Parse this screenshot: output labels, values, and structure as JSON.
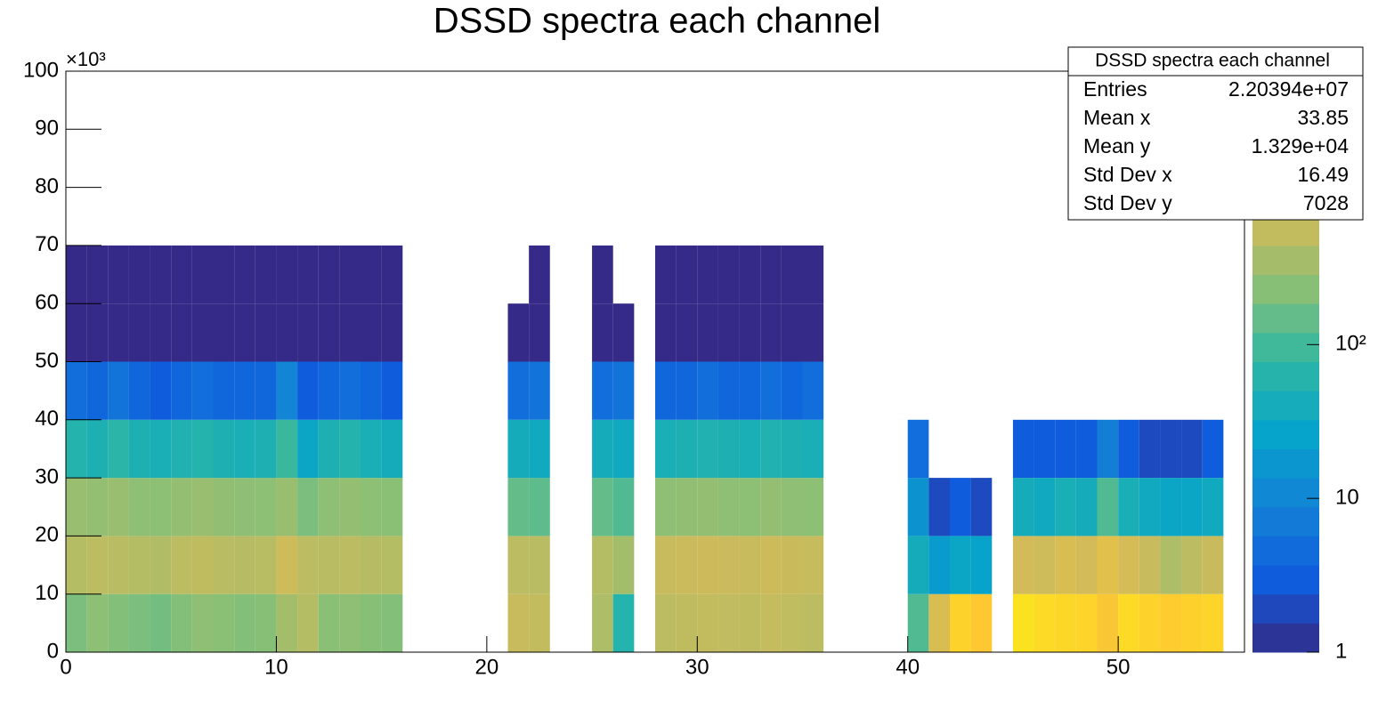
{
  "chart_data": {
    "type": "heatmap",
    "title": "DSSD spectra each channel",
    "y_multiplier": "×10³",
    "xlim": [
      0,
      56
    ],
    "xticks": [
      0,
      10,
      20,
      30,
      40,
      50
    ],
    "ylim": [
      0,
      100
    ],
    "yticks": [
      0,
      10,
      20,
      30,
      40,
      50,
      60,
      70,
      80,
      90,
      100
    ],
    "xbins": [
      0,
      1,
      2,
      3,
      4,
      5,
      6,
      7,
      8,
      9,
      10,
      11,
      12,
      13,
      14,
      15,
      16,
      17,
      18,
      19,
      20,
      21,
      22,
      23,
      24,
      25,
      26,
      27,
      28,
      29,
      30,
      31,
      32,
      33,
      34,
      35,
      36,
      37,
      38,
      39,
      40,
      41,
      42,
      43,
      44,
      45,
      46,
      47,
      48,
      49,
      50,
      51,
      52,
      53,
      54,
      55,
      56
    ],
    "ybins": [
      0,
      10,
      20,
      30,
      40,
      50,
      60,
      70
    ],
    "zlim": [
      1,
      6000
    ],
    "zlog": true,
    "zticks": [
      1,
      10,
      {
        "value": 100,
        "label": "10²"
      }
    ],
    "palette": [
      "#352a87",
      "#0f5cdd",
      "#1481d6",
      "#06a4ca",
      "#2eb7a4",
      "#87bf77",
      "#d1bb59",
      "#fec832",
      "#f9fb0e"
    ],
    "z": [
      [
        200,
        450,
        300,
        60,
        5,
        1,
        1
      ],
      [
        250,
        500,
        280,
        50,
        4,
        1,
        1
      ],
      [
        220,
        480,
        300,
        70,
        6,
        1,
        1
      ],
      [
        200,
        450,
        260,
        50,
        4,
        1,
        1
      ],
      [
        180,
        420,
        250,
        45,
        3,
        1,
        1
      ],
      [
        220,
        500,
        280,
        55,
        4,
        1,
        1
      ],
      [
        260,
        520,
        300,
        60,
        5,
        1,
        1
      ],
      [
        240,
        480,
        270,
        50,
        4,
        1,
        1
      ],
      [
        220,
        460,
        260,
        45,
        4,
        1,
        1
      ],
      [
        230,
        470,
        250,
        50,
        4,
        1,
        1
      ],
      [
        350,
        650,
        300,
        90,
        10,
        1,
        1
      ],
      [
        450,
        500,
        200,
        30,
        3,
        1,
        1
      ],
      [
        240,
        480,
        260,
        50,
        4,
        1,
        1
      ],
      [
        260,
        500,
        280,
        60,
        5,
        1,
        1
      ],
      [
        230,
        460,
        250,
        45,
        4,
        1,
        1
      ],
      [
        220,
        450,
        240,
        40,
        3,
        1,
        1
      ],
      [
        0,
        0,
        0,
        0,
        0,
        0,
        0
      ],
      [
        0,
        0,
        0,
        0,
        0,
        0,
        0
      ],
      [
        0,
        0,
        0,
        0,
        0,
        0,
        0
      ],
      [
        0,
        0,
        0,
        0,
        0,
        0,
        0
      ],
      [
        0,
        0,
        0,
        0,
        0,
        0,
        0
      ],
      [
        600,
        500,
        150,
        40,
        5,
        1,
        0
      ],
      [
        550,
        480,
        140,
        35,
        6,
        1,
        1
      ],
      [
        0,
        0,
        0,
        0,
        0,
        0,
        0
      ],
      [
        0,
        0,
        0,
        0,
        0,
        0,
        0
      ],
      [
        400,
        450,
        150,
        40,
        5,
        1,
        1
      ],
      [
        60,
        350,
        120,
        35,
        6,
        1,
        0
      ],
      [
        0,
        0,
        0,
        0,
        0,
        0,
        0
      ],
      [
        500,
        600,
        260,
        45,
        4,
        1,
        1
      ],
      [
        520,
        620,
        270,
        50,
        4,
        1,
        1
      ],
      [
        550,
        640,
        280,
        55,
        5,
        1,
        1
      ],
      [
        540,
        620,
        260,
        50,
        4,
        1,
        1
      ],
      [
        520,
        600,
        250,
        45,
        4,
        1,
        1
      ],
      [
        560,
        640,
        280,
        55,
        5,
        1,
        1
      ],
      [
        530,
        610,
        260,
        50,
        4,
        1,
        1
      ],
      [
        500,
        580,
        250,
        45,
        5,
        1,
        1
      ],
      [
        0,
        0,
        0,
        0,
        0,
        0,
        0
      ],
      [
        0,
        0,
        0,
        0,
        0,
        0,
        0
      ],
      [
        0,
        0,
        0,
        0,
        0,
        0,
        0
      ],
      [
        0,
        0,
        0,
        0,
        0,
        0,
        0
      ],
      [
        120,
        40,
        15,
        5,
        0,
        0,
        0
      ],
      [
        800,
        20,
        2,
        0,
        0,
        0,
        0
      ],
      [
        2500,
        30,
        3,
        0,
        0,
        0,
        0
      ],
      [
        2000,
        25,
        2,
        0,
        0,
        0,
        0
      ],
      [
        0,
        0,
        0,
        0,
        0,
        0,
        0
      ],
      [
        3500,
        700,
        40,
        3,
        0,
        0,
        0
      ],
      [
        3000,
        650,
        35,
        3,
        0,
        0,
        0
      ],
      [
        2800,
        800,
        45,
        3,
        0,
        0,
        0
      ],
      [
        2600,
        700,
        40,
        3,
        0,
        0,
        0
      ],
      [
        1800,
        1000,
        120,
        8,
        0,
        0,
        0
      ],
      [
        3000,
        750,
        45,
        3,
        0,
        0,
        0
      ],
      [
        2500,
        600,
        35,
        2,
        0,
        0,
        0
      ],
      [
        2200,
        400,
        30,
        2,
        0,
        0,
        0
      ],
      [
        2400,
        500,
        30,
        2,
        0,
        0,
        0
      ],
      [
        2600,
        600,
        35,
        3,
        0,
        0,
        0
      ],
      [
        0,
        0,
        0,
        0,
        0,
        0,
        0
      ]
    ],
    "stats": {
      "title": "DSSD spectra each channel",
      "rows": [
        [
          "Entries",
          "2.20394e+07"
        ],
        [
          "Mean x",
          "33.85"
        ],
        [
          "Mean y",
          "1.329e+04"
        ],
        [
          "Std Dev x",
          "16.49"
        ],
        [
          "Std Dev y",
          "7028"
        ]
      ]
    }
  }
}
